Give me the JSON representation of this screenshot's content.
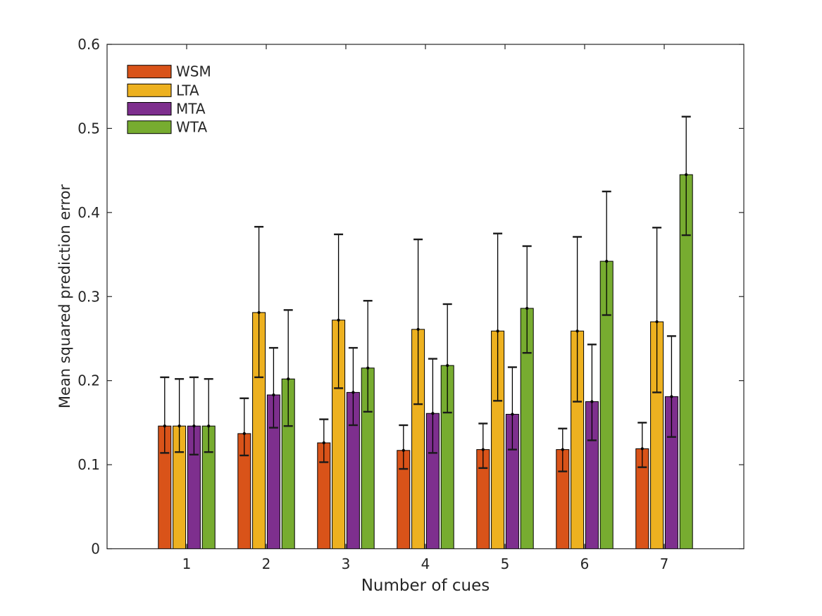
{
  "figure": {
    "background": "#ffffff",
    "axis_color": "#262626",
    "bar_edge_color": "#000000",
    "errorbar_color": "#000000"
  },
  "legend": {
    "position": "top-left-inside",
    "items": [
      {
        "label": "WSM",
        "color": "#D95319"
      },
      {
        "label": "LTA",
        "color": "#EDB120"
      },
      {
        "label": "MTA",
        "color": "#7E2F8E"
      },
      {
        "label": "WTA",
        "color": "#77AC30"
      }
    ]
  },
  "chart_data": {
    "type": "bar",
    "title": "",
    "xlabel": "Number of cues",
    "ylabel": "Mean squared prediction error",
    "categories": [
      "1",
      "2",
      "3",
      "4",
      "5",
      "6",
      "7"
    ],
    "xlim": [
      0,
      8
    ],
    "ylim": [
      0,
      0.6
    ],
    "yticks": [
      0,
      0.1,
      0.2,
      0.3,
      0.4,
      0.5,
      0.6
    ],
    "ytick_labels": [
      "0",
      "0.1",
      "0.2",
      "0.3",
      "0.4",
      "0.5",
      "0.6"
    ],
    "grid": false,
    "error_bars": "asymmetric, whisker caps, values are absolute low/high",
    "legend_position": "top-left-inside",
    "series": [
      {
        "name": "WSM",
        "color": "#D95319",
        "values": [
          0.146,
          0.137,
          0.126,
          0.117,
          0.118,
          0.118,
          0.119
        ],
        "err_lo": [
          0.114,
          0.111,
          0.103,
          0.095,
          0.096,
          0.092,
          0.097
        ],
        "err_hi": [
          0.204,
          0.179,
          0.154,
          0.147,
          0.149,
          0.143,
          0.15
        ]
      },
      {
        "name": "LTA",
        "color": "#EDB120",
        "values": [
          0.146,
          0.281,
          0.272,
          0.261,
          0.259,
          0.259,
          0.27
        ],
        "err_lo": [
          0.115,
          0.204,
          0.191,
          0.172,
          0.176,
          0.175,
          0.186
        ],
        "err_hi": [
          0.202,
          0.383,
          0.374,
          0.368,
          0.375,
          0.371,
          0.382
        ]
      },
      {
        "name": "MTA",
        "color": "#7E2F8E",
        "values": [
          0.146,
          0.183,
          0.186,
          0.161,
          0.16,
          0.175,
          0.181
        ],
        "err_lo": [
          0.112,
          0.144,
          0.147,
          0.114,
          0.118,
          0.129,
          0.133
        ],
        "err_hi": [
          0.204,
          0.239,
          0.239,
          0.226,
          0.216,
          0.243,
          0.253
        ]
      },
      {
        "name": "WTA",
        "color": "#77AC30",
        "values": [
          0.146,
          0.202,
          0.215,
          0.218,
          0.286,
          0.342,
          0.445
        ],
        "err_lo": [
          0.115,
          0.146,
          0.163,
          0.162,
          0.233,
          0.278,
          0.373
        ],
        "err_hi": [
          0.202,
          0.284,
          0.295,
          0.291,
          0.36,
          0.425,
          0.514
        ]
      }
    ]
  }
}
